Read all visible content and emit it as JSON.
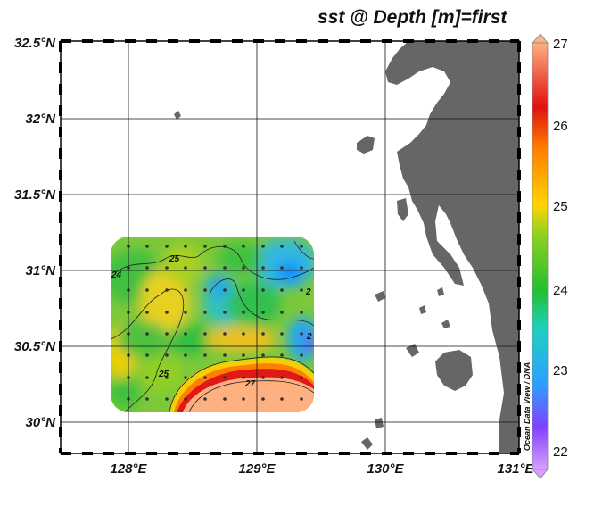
{
  "title": "sst @ Depth [m]=first",
  "credit": "Ocean Data View / DNA",
  "map": {
    "lon_ticks": [
      "128°E",
      "129°E",
      "130°E",
      "131°E"
    ],
    "lat_ticks": [
      "30°N",
      "30.5°N",
      "31°N",
      "31.5°N",
      "32°N",
      "32.5°N"
    ],
    "lon_range": [
      127.5,
      131
    ],
    "lat_range": [
      29.8,
      32.5
    ],
    "land_color": "#666666",
    "grid": true
  },
  "colorbar": {
    "ticks": [
      "22",
      "23",
      "24",
      "25",
      "26",
      "27"
    ],
    "range": [
      22,
      27
    ],
    "colors": [
      "#d7a0ff",
      "#8040ff",
      "#2aa0ff",
      "#1fd0c0",
      "#20c030",
      "#90d020",
      "#ffd400",
      "#ff8000",
      "#e01010",
      "#ffb080"
    ]
  },
  "contour_labels": [
    "25",
    "24",
    "25",
    "27",
    "2",
    "2"
  ],
  "field": {
    "variable": "sst",
    "unit": "",
    "lon_extent": [
      127.9,
      129.45
    ],
    "lat_extent": [
      30.05,
      31.25
    ]
  }
}
